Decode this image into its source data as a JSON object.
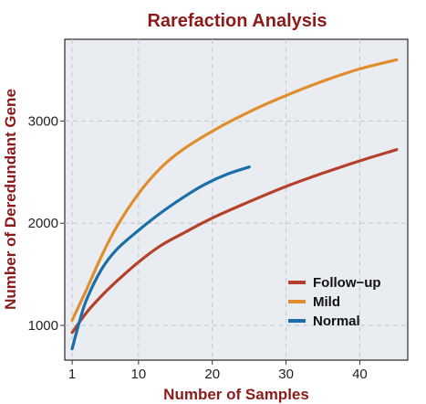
{
  "chart_data": {
    "type": "line",
    "title": "Rarefaction Analysis",
    "xlabel": "Number of Samples",
    "ylabel": "Number of Deredundant Gene",
    "xlim": [
      0,
      46.5
    ],
    "ylim": [
      660,
      3800
    ],
    "xticks": [
      1,
      10,
      20,
      30,
      40
    ],
    "yticks": [
      1000,
      2000,
      3000
    ],
    "grid": true,
    "legend_position": "bottom-right",
    "background": "#e9edf1",
    "series": [
      {
        "name": "Follow−up",
        "color": "#b5412c",
        "x": [
          1,
          3,
          5,
          7,
          10,
          13,
          16,
          20,
          25,
          30,
          35,
          40,
          45
        ],
        "y": [
          930,
          1130,
          1290,
          1430,
          1620,
          1780,
          1900,
          2050,
          2210,
          2360,
          2490,
          2610,
          2720
        ]
      },
      {
        "name": "Mild",
        "color": "#e08e2d",
        "x": [
          1,
          3,
          5,
          7,
          10,
          13,
          16,
          20,
          25,
          30,
          35,
          40,
          45
        ],
        "y": [
          1050,
          1360,
          1680,
          1960,
          2290,
          2540,
          2720,
          2900,
          3090,
          3250,
          3390,
          3510,
          3600
        ]
      },
      {
        "name": "Normal",
        "color": "#1a6fa8",
        "x": [
          1,
          2,
          3,
          5,
          7,
          10,
          13,
          16,
          19,
          22,
          25
        ],
        "y": [
          770,
          1040,
          1260,
          1550,
          1740,
          1930,
          2100,
          2250,
          2380,
          2480,
          2550
        ]
      }
    ]
  }
}
